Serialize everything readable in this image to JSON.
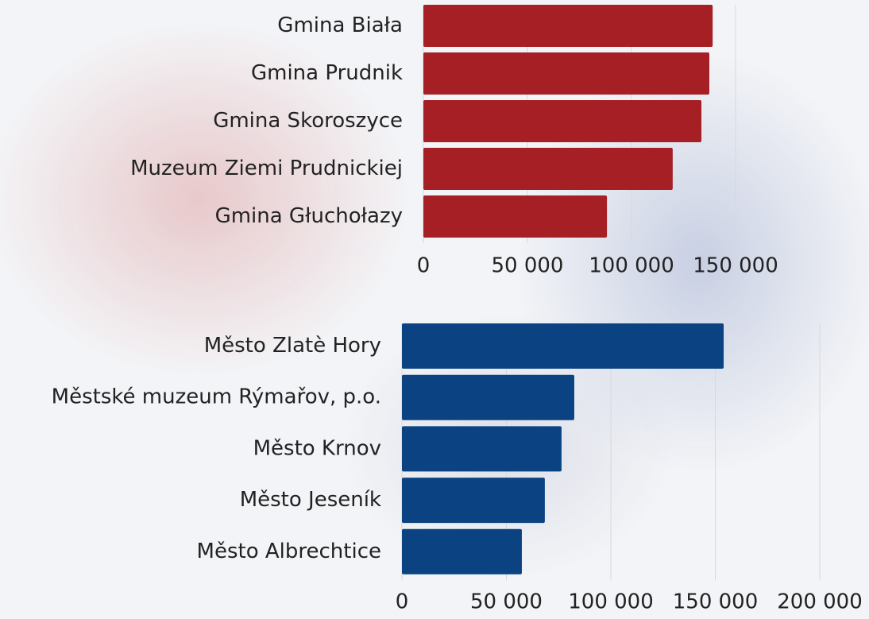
{
  "chart_data": [
    {
      "type": "bar",
      "orientation": "horizontal",
      "categories": [
        "Gmina Biała",
        "Gmina Prudnik",
        "Gmina Skoroszyce",
        "Muzeum Ziemi Prudnickiej",
        "Gmina Głuchołazy"
      ],
      "values": [
        139000,
        137400,
        133600,
        119800,
        88200
      ],
      "color": "#a51f24",
      "xlim": [
        0,
        150000
      ],
      "xticks": [
        0,
        {
          "value": 50000,
          "label": "50 000"
        },
        {
          "value": 100000,
          "label": "100 000"
        },
        {
          "value": 150000,
          "label": "150 000"
        }
      ],
      "grid": true
    },
    {
      "type": "bar",
      "orientation": "horizontal",
      "categories": [
        "Město Zlatè Hory",
        "Městské muzeum Rýmařov, p.o.",
        "Město Krnov",
        "Město Jeseník",
        "Město Albrechtice"
      ],
      "values": [
        154000,
        82500,
        76400,
        68400,
        57400
      ],
      "color": "#0b4382",
      "xlim": [
        0,
        200000
      ],
      "xticks": [
        0,
        {
          "value": 50000,
          "label": "50 000"
        },
        {
          "value": 100000,
          "label": "100 000"
        },
        {
          "value": 150000,
          "label": "150 000"
        },
        {
          "value": 200000,
          "label": "200 000"
        }
      ],
      "grid": true
    }
  ]
}
